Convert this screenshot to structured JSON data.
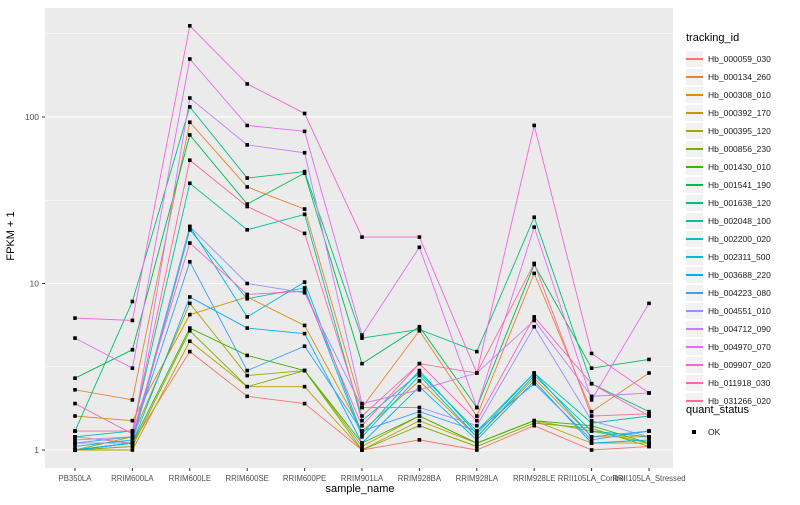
{
  "chart_data": {
    "type": "line",
    "xlabel": "sample_name",
    "ylabel": "FPKM + 1",
    "y_scale": "log10",
    "y_ticks": [
      "1",
      "10",
      "100"
    ],
    "ylim": [
      0.78,
      450
    ],
    "grid": "on",
    "legend_position": "right",
    "categories": [
      "PB350LA",
      "RRIM600LA",
      "RRIM600LE",
      "RRIM600SE",
      "RRIM600PE",
      "RRIM901LA",
      "RRIM928BA",
      "RRIM928LA",
      "RRIM928LE",
      "RRII105LA_Control",
      "RRII105LA_Stressed"
    ],
    "legend_title": "tracking_id",
    "series": [
      {
        "name": "Hb_000059_030",
        "color": "#F8766D",
        "values": [
          1.2,
          1.1,
          3.9,
          2.1,
          1.9,
          1.0,
          1.15,
          1.0,
          1.4,
          1.0,
          1.05
        ]
      },
      {
        "name": "Hb_000134_260",
        "color": "#EA8331",
        "values": [
          2.3,
          2.0,
          93,
          38,
          28,
          1.8,
          5.2,
          1.6,
          11.5,
          1.7,
          2.9
        ]
      },
      {
        "name": "Hb_000308_010",
        "color": "#D89000",
        "values": [
          1.6,
          1.5,
          6.5,
          8.3,
          5.6,
          1.3,
          2.6,
          1.2,
          2.7,
          1.2,
          1.2
        ]
      },
      {
        "name": "Hb_000392_170",
        "color": "#C09B00",
        "values": [
          1.0,
          1.0,
          4.5,
          2.4,
          2.4,
          1.0,
          1.5,
          1.1,
          1.5,
          1.1,
          1.1
        ]
      },
      {
        "name": "Hb_000395_120",
        "color": "#A3A500",
        "values": [
          1.0,
          1.2,
          7.6,
          2.8,
          3.0,
          1.05,
          1.6,
          1.1,
          1.5,
          1.3,
          1.1
        ]
      },
      {
        "name": "Hb_000856_230",
        "color": "#7CAE00",
        "values": [
          1.0,
          1.05,
          5.2,
          2.4,
          3.0,
          1.0,
          1.4,
          1.05,
          1.45,
          1.35,
          1.05
        ]
      },
      {
        "name": "Hb_001430_010",
        "color": "#39B600",
        "values": [
          1.0,
          1.1,
          5.4,
          3.7,
          3.0,
          1.1,
          1.6,
          1.1,
          1.5,
          1.4,
          1.1
        ]
      },
      {
        "name": "Hb_001541_190",
        "color": "#00BB4E",
        "values": [
          2.7,
          4.0,
          78,
          30,
          46,
          3.3,
          5.5,
          1.8,
          13,
          3.1,
          3.5
        ]
      },
      {
        "name": "Hb_001638_120",
        "color": "#00BF7D",
        "values": [
          1.3,
          7.8,
          115,
          43,
          47,
          4.7,
          5.3,
          3.9,
          25,
          2.5,
          1.7
        ]
      },
      {
        "name": "Hb_002048_100",
        "color": "#00C1A3",
        "values": [
          1.2,
          1.3,
          40,
          21,
          26,
          1.5,
          2.9,
          1.3,
          2.9,
          1.45,
          1.6
        ]
      },
      {
        "name": "Hb_002200_020",
        "color": "#00BFC4",
        "values": [
          1.0,
          1.1,
          21,
          8.1,
          9.4,
          1.2,
          2.8,
          1.2,
          2.8,
          1.3,
          1.2
        ]
      },
      {
        "name": "Hb_002311_500",
        "color": "#00BAE0",
        "values": [
          1.05,
          1.15,
          22,
          6.3,
          10.2,
          1.25,
          3.0,
          1.25,
          2.9,
          1.2,
          1.3
        ]
      },
      {
        "name": "Hb_003688_220",
        "color": "#00B0F6",
        "values": [
          1.0,
          1.1,
          8.3,
          5.4,
          5.0,
          1.1,
          2.4,
          1.15,
          2.6,
          1.1,
          1.15
        ]
      },
      {
        "name": "Hb_004223_080",
        "color": "#35A2FF",
        "values": [
          1.1,
          1.2,
          13.5,
          3.0,
          4.2,
          1.3,
          1.7,
          1.3,
          2.5,
          1.15,
          1.3
        ]
      },
      {
        "name": "Hb_004551_010",
        "color": "#9590FF",
        "values": [
          1.1,
          1.1,
          22,
          10,
          8.8,
          1.8,
          1.8,
          1.4,
          5.5,
          1.5,
          1.2
        ]
      },
      {
        "name": "Hb_004712_090",
        "color": "#C77CFF",
        "values": [
          1.15,
          1.2,
          130,
          68,
          61,
          1.9,
          2.3,
          2.9,
          6.0,
          2.1,
          2.2
        ]
      },
      {
        "name": "Hb_004970_070",
        "color": "#E76BF3",
        "values": [
          4.7,
          3.1,
          223,
          89,
          82,
          4.9,
          16.5,
          1.8,
          21.8,
          2.0,
          7.6
        ]
      },
      {
        "name": "Hb_009907_020",
        "color": "#FA62DB",
        "values": [
          6.2,
          6.0,
          353,
          158,
          105,
          19,
          19,
          2.9,
          89,
          3.8,
          2.2
        ]
      },
      {
        "name": "Hb_011918_030",
        "color": "#FF62BC",
        "values": [
          1.9,
          1.25,
          17.5,
          8.6,
          9.0,
          1.4,
          3.3,
          1.5,
          6.3,
          2.5,
          1.6
        ]
      },
      {
        "name": "Hb_031266_020",
        "color": "#FF6A98",
        "values": [
          1.3,
          1.3,
          55,
          29,
          20,
          1.6,
          3.3,
          2.9,
          13.2,
          1.6,
          1.65
        ]
      }
    ],
    "legend2_title": "quant_status",
    "legend2_items": [
      {
        "label": "OK"
      }
    ],
    "point_shape": "square",
    "point_color": "#000000"
  },
  "style_colors": {
    "panel_bg": "#EBEBEB",
    "grid": "#FFFFFF",
    "tick_text": "#4D4D4D",
    "legend_key_bg": "#F2F2F2"
  }
}
